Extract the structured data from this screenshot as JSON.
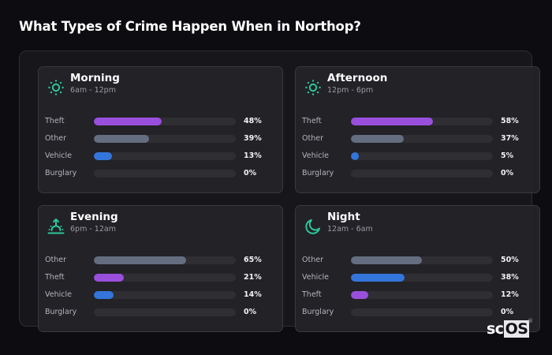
{
  "page": {
    "title": "What Types of Crime Happen When in Northop?"
  },
  "colors": {
    "theft": "#9a4fdc",
    "other": "#646e80",
    "vehicle": "#3475db",
    "burglary": "#d16a3a",
    "icon_accent": "#2ec79a",
    "track": "#2e2e33"
  },
  "periods": [
    {
      "name": "Morning",
      "range": "6am - 12pm",
      "icon": "sun-icon",
      "rows": [
        {
          "label": "Theft",
          "value": 48,
          "pct": "48%",
          "category": "theft"
        },
        {
          "label": "Other",
          "value": 39,
          "pct": "39%",
          "category": "other"
        },
        {
          "label": "Vehicle",
          "value": 13,
          "pct": "13%",
          "category": "vehicle"
        },
        {
          "label": "Burglary",
          "value": 0,
          "pct": "0%",
          "category": "burglary"
        }
      ]
    },
    {
      "name": "Afternoon",
      "range": "12pm - 6pm",
      "icon": "sun-icon",
      "rows": [
        {
          "label": "Theft",
          "value": 58,
          "pct": "58%",
          "category": "theft"
        },
        {
          "label": "Other",
          "value": 37,
          "pct": "37%",
          "category": "other"
        },
        {
          "label": "Vehicle",
          "value": 5,
          "pct": "5%",
          "category": "vehicle"
        },
        {
          "label": "Burglary",
          "value": 0,
          "pct": "0%",
          "category": "burglary"
        }
      ]
    },
    {
      "name": "Evening",
      "range": "6pm - 12am",
      "icon": "sunset-icon",
      "rows": [
        {
          "label": "Other",
          "value": 65,
          "pct": "65%",
          "category": "other"
        },
        {
          "label": "Theft",
          "value": 21,
          "pct": "21%",
          "category": "theft"
        },
        {
          "label": "Vehicle",
          "value": 14,
          "pct": "14%",
          "category": "vehicle"
        },
        {
          "label": "Burglary",
          "value": 0,
          "pct": "0%",
          "category": "burglary"
        }
      ]
    },
    {
      "name": "Night",
      "range": "12am - 6am",
      "icon": "moon-icon",
      "rows": [
        {
          "label": "Other",
          "value": 50,
          "pct": "50%",
          "category": "other"
        },
        {
          "label": "Vehicle",
          "value": 38,
          "pct": "38%",
          "category": "vehicle"
        },
        {
          "label": "Theft",
          "value": 12,
          "pct": "12%",
          "category": "theft"
        },
        {
          "label": "Burglary",
          "value": 0,
          "pct": "0%",
          "category": "burglary"
        }
      ]
    }
  ],
  "logo": {
    "prefix": "sc",
    "boxed": "OS",
    "mark": "®"
  }
}
